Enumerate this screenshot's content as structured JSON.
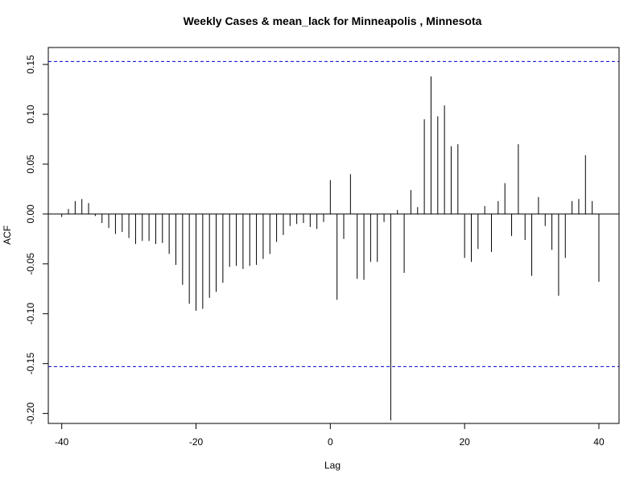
{
  "chart_data": {
    "type": "bar",
    "title": "Weekly Cases & mean_lack for Minneapolis , Minnesota",
    "xlabel": "Lag",
    "ylabel": "ACF",
    "xlim": [
      -42,
      43
    ],
    "ylim": [
      -0.21,
      0.167
    ],
    "xticks": [
      -40,
      -20,
      0,
      20,
      40
    ],
    "xtick_labels": [
      "-40",
      "-20",
      "0",
      "20",
      "40"
    ],
    "yticks": [
      -0.2,
      -0.15,
      -0.1,
      -0.05,
      0.0,
      0.05,
      0.1,
      0.15
    ],
    "ytick_labels": [
      "-0.20",
      "-0.15",
      "-0.10",
      "-0.05",
      "0.00",
      "0.05",
      "0.10",
      "0.15"
    ],
    "confidence_bounds": [
      0.153,
      -0.153
    ],
    "colors": {
      "bars": "#000000",
      "confidence": "#0000cd",
      "zero_line": "#000000"
    },
    "grid": false,
    "x": [
      -40,
      -39,
      -38,
      -37,
      -36,
      -35,
      -34,
      -33,
      -32,
      -31,
      -30,
      -29,
      -28,
      -27,
      -26,
      -25,
      -24,
      -23,
      -22,
      -21,
      -20,
      -19,
      -18,
      -17,
      -16,
      -15,
      -14,
      -13,
      -12,
      -11,
      -10,
      -9,
      -8,
      -7,
      -6,
      -5,
      -4,
      -3,
      -2,
      -1,
      0,
      1,
      2,
      3,
      4,
      5,
      6,
      7,
      8,
      9,
      10,
      11,
      12,
      13,
      14,
      15,
      16,
      17,
      18,
      19,
      20,
      21,
      22,
      23,
      24,
      25,
      26,
      27,
      28,
      29,
      30,
      31,
      32,
      33,
      34,
      35,
      36,
      37,
      38,
      39,
      40
    ],
    "values": [
      -0.003,
      0.005,
      0.013,
      0.015,
      0.011,
      -0.002,
      -0.009,
      -0.014,
      -0.02,
      -0.018,
      -0.024,
      -0.03,
      -0.027,
      -0.027,
      -0.03,
      -0.029,
      -0.04,
      -0.051,
      -0.071,
      -0.09,
      -0.097,
      -0.095,
      -0.084,
      -0.078,
      -0.069,
      -0.053,
      -0.052,
      -0.055,
      -0.052,
      -0.051,
      -0.045,
      -0.04,
      -0.028,
      -0.021,
      -0.012,
      -0.01,
      -0.009,
      -0.013,
      -0.015,
      -0.008,
      0.034,
      -0.086,
      -0.025,
      0.04,
      -0.065,
      -0.066,
      -0.048,
      -0.048,
      -0.008,
      -0.207,
      0.004,
      -0.059,
      0.024,
      0.007,
      0.095,
      0.138,
      0.098,
      0.109,
      0.068,
      0.07,
      -0.044,
      -0.048,
      -0.035,
      0.008,
      -0.038,
      0.013,
      0.031,
      -0.022,
      0.07,
      -0.026,
      -0.062,
      0.017,
      -0.012,
      -0.036,
      -0.082,
      -0.044,
      0.013,
      0.015,
      0.059,
      0.013,
      -0.068
    ]
  }
}
